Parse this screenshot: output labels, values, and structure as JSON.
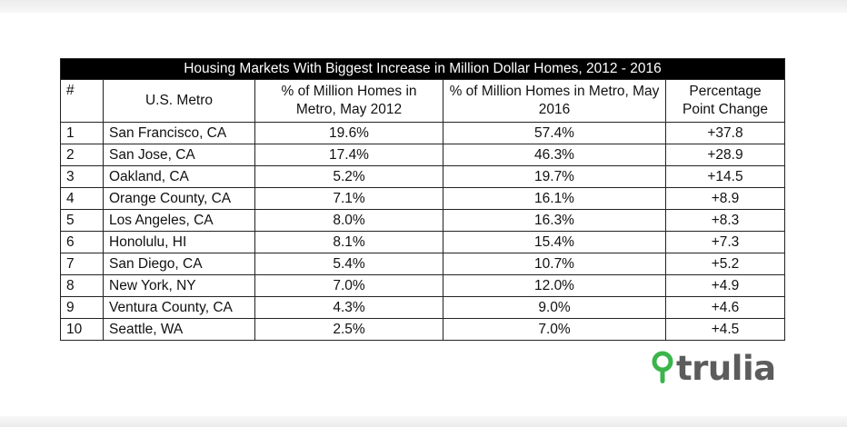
{
  "chart_data": {
    "type": "table",
    "title": "Housing Markets With Biggest Increase in Million Dollar Homes, 2012 - 2016",
    "columns": [
      "#",
      "U.S. Metro",
      "% of Million Homes in Metro, May 2012",
      "% of Million Homes in Metro, May 2016",
      "Percentage Point Change"
    ],
    "rows": [
      [
        "1",
        "San Francisco, CA",
        "19.6%",
        "57.4%",
        "+37.8"
      ],
      [
        "2",
        "San Jose, CA",
        "17.4%",
        "46.3%",
        "+28.9"
      ],
      [
        "3",
        "Oakland, CA",
        "5.2%",
        "19.7%",
        "+14.5"
      ],
      [
        "4",
        "Orange County, CA",
        "7.1%",
        "16.1%",
        "+8.9"
      ],
      [
        "5",
        "Los Angeles, CA",
        "8.0%",
        "16.3%",
        "+8.3"
      ],
      [
        "6",
        "Honolulu, HI",
        "8.1%",
        "15.4%",
        "+7.3"
      ],
      [
        "7",
        "San Diego, CA",
        "5.4%",
        "10.7%",
        "+5.2"
      ],
      [
        "8",
        "New York, NY",
        "7.0%",
        "12.0%",
        "+4.9"
      ],
      [
        "9",
        "Ventura County, CA",
        "4.3%",
        "9.0%",
        "+4.6"
      ],
      [
        "10",
        "Seattle, WA",
        "2.5%",
        "7.0%",
        "+4.5"
      ]
    ]
  },
  "logo": {
    "text": "trulia",
    "icon": "map-pin-icon",
    "color": "#3bb54a",
    "text_color": "#5c5c5c"
  },
  "colors": {
    "title_bg": "#000000",
    "title_fg": "#ffffff",
    "border": "#222222"
  }
}
